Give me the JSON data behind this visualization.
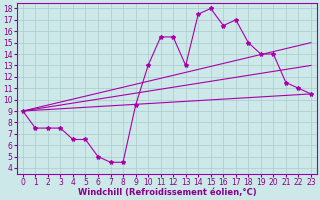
{
  "xlabel": "Windchill (Refroidissement éolien,°C)",
  "bg_color": "#cce8e8",
  "line_color": "#aa00aa",
  "grid_color": "#aacccc",
  "xlim": [
    -0.5,
    23.5
  ],
  "ylim": [
    3.5,
    18.5
  ],
  "xticks": [
    0,
    1,
    2,
    3,
    4,
    5,
    6,
    7,
    8,
    9,
    10,
    11,
    12,
    13,
    14,
    15,
    16,
    17,
    18,
    19,
    20,
    21,
    22,
    23
  ],
  "yticks": [
    4,
    5,
    6,
    7,
    8,
    9,
    10,
    11,
    12,
    13,
    14,
    15,
    16,
    17,
    18
  ],
  "curve1_x": [
    0,
    1,
    2,
    3,
    4,
    5,
    6,
    7,
    8,
    9,
    10,
    11,
    12,
    13,
    14,
    15,
    16,
    17,
    18,
    19,
    20,
    21,
    22,
    23
  ],
  "curve1_y": [
    9.0,
    7.5,
    7.5,
    7.5,
    6.5,
    6.5,
    5.0,
    4.5,
    4.5,
    9.5,
    13.0,
    15.5,
    15.5,
    13.0,
    17.5,
    18.0,
    16.5,
    17.0,
    15.0,
    14.0,
    14.0,
    11.5,
    11.0,
    10.5
  ],
  "line1_x": [
    0,
    23
  ],
  "line1_y": [
    9.0,
    10.5
  ],
  "line2_x": [
    0,
    23
  ],
  "line2_y": [
    9.0,
    13.0
  ],
  "line3_x": [
    0,
    23
  ],
  "line3_y": [
    9.0,
    15.0
  ],
  "xlabel_color": "#880088",
  "tick_color": "#880088",
  "tick_fontsize": 5.5,
  "xlabel_fontsize": 6.0,
  "spine_color": "#9900aa"
}
